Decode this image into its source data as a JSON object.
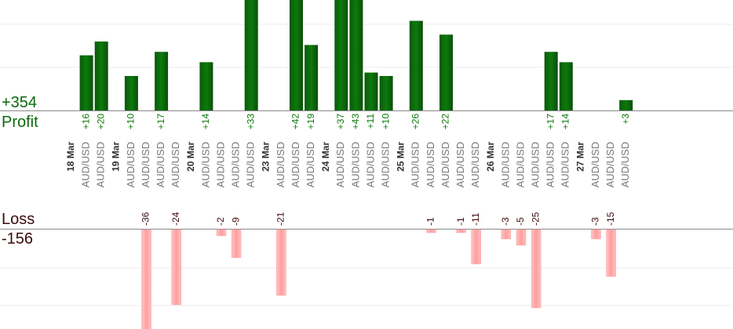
{
  "summary": {
    "profit_total": "+354",
    "profit_label": "Profit",
    "loss_label": "Loss",
    "loss_total": "-156"
  },
  "colors": {
    "profit_bar": "#0a6a0a",
    "loss_bar": "#ffb3b3",
    "date_text": "#333333",
    "pair_text": "#777777",
    "profit_text": "#0a7a0a",
    "loss_text": "#3a0a0a"
  },
  "chart_data": {
    "type": "bar",
    "profit_ylim": [
      0,
      25
    ],
    "loss_ylim": [
      -25,
      0
    ],
    "columns": [
      {
        "kind": "date",
        "label": "18 Mar"
      },
      {
        "kind": "trade",
        "label": "AUD/USD",
        "profit": "+16",
        "value": 16
      },
      {
        "kind": "trade",
        "label": "AUD/USD",
        "profit": "+20",
        "value": 20
      },
      {
        "kind": "date",
        "label": "19 Mar"
      },
      {
        "kind": "trade",
        "label": "AUD/USD",
        "profit": "+10",
        "value": 10
      },
      {
        "kind": "trade",
        "label": "AUD/USD",
        "loss": "-36",
        "value": -36
      },
      {
        "kind": "trade",
        "label": "AUD/USD",
        "profit": "+17",
        "value": 17
      },
      {
        "kind": "trade",
        "label": "AUD/USD",
        "loss": "-24",
        "value": -24
      },
      {
        "kind": "date",
        "label": "20 Mar"
      },
      {
        "kind": "trade",
        "label": "AUD/USD",
        "profit": "+14",
        "value": 14
      },
      {
        "kind": "trade",
        "label": "AUD/USD",
        "loss": "-2",
        "value": -2
      },
      {
        "kind": "trade",
        "label": "AUD/USD",
        "loss": "-9",
        "value": -9
      },
      {
        "kind": "trade",
        "label": "AUD/USD",
        "profit": "+33",
        "value": 33
      },
      {
        "kind": "date",
        "label": "23 Mar"
      },
      {
        "kind": "trade",
        "label": "AUD/USD",
        "loss": "-21",
        "value": -21
      },
      {
        "kind": "trade",
        "label": "AUD/USD",
        "profit": "+42",
        "value": 42
      },
      {
        "kind": "trade",
        "label": "AUD/USD",
        "profit": "+19",
        "value": 19
      },
      {
        "kind": "date",
        "label": "24 Mar"
      },
      {
        "kind": "trade",
        "label": "AUD/USD",
        "profit": "+37",
        "value": 37
      },
      {
        "kind": "trade",
        "label": "AUD/USD",
        "profit": "+43",
        "value": 43
      },
      {
        "kind": "trade",
        "label": "AUD/USD",
        "profit": "+11",
        "value": 11
      },
      {
        "kind": "trade",
        "label": "AUD/USD",
        "profit": "+10",
        "value": 10
      },
      {
        "kind": "date",
        "label": "25 Mar"
      },
      {
        "kind": "trade",
        "label": "AUD/USD",
        "profit": "+26",
        "value": 26
      },
      {
        "kind": "trade",
        "label": "AUD/USD",
        "loss": "-1",
        "value": -1
      },
      {
        "kind": "trade",
        "label": "AUD/USD",
        "profit": "+22",
        "value": 22
      },
      {
        "kind": "trade",
        "label": "AUD/USD",
        "loss": "-1",
        "value": -1
      },
      {
        "kind": "trade",
        "label": "AUD/USD",
        "loss": "-11",
        "value": -11
      },
      {
        "kind": "date",
        "label": "26 Mar"
      },
      {
        "kind": "trade",
        "label": "AUD/USD",
        "loss": "-3",
        "value": -3
      },
      {
        "kind": "trade",
        "label": "AUD/USD",
        "loss": "-5",
        "value": -5
      },
      {
        "kind": "trade",
        "label": "AUD/USD",
        "loss": "-25",
        "value": -25
      },
      {
        "kind": "trade",
        "label": "AUD/USD",
        "profit": "+17",
        "value": 17
      },
      {
        "kind": "trade",
        "label": "AUD/USD",
        "profit": "+14",
        "value": 14
      },
      {
        "kind": "date",
        "label": "27 Mar"
      },
      {
        "kind": "trade",
        "label": "AUD/USD",
        "loss": "-3",
        "value": -3
      },
      {
        "kind": "trade",
        "label": "AUD/USD",
        "loss": "-15",
        "value": -15
      },
      {
        "kind": "trade",
        "label": "AUD/USD",
        "profit": "+3",
        "value": 3
      }
    ]
  }
}
